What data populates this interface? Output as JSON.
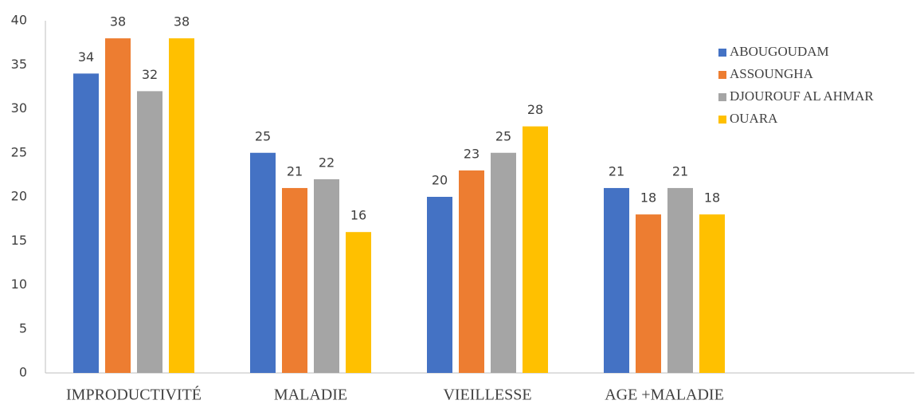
{
  "chart_data": {
    "type": "bar",
    "categories": [
      "IMPRODUCTIVITÉ",
      "MALADIE",
      "VIEILLESSE",
      "AGE +MALADIE"
    ],
    "series": [
      {
        "name": "ABOUGOUDAM",
        "color": "#4472c4",
        "values": [
          34,
          25,
          20,
          21
        ]
      },
      {
        "name": "ASSOUNGHA",
        "color": "#ed7d31",
        "values": [
          38,
          21,
          23,
          18
        ]
      },
      {
        "name": "DJOUROUF AL AHMAR",
        "color": "#a5a5a5",
        "values": [
          32,
          22,
          25,
          21
        ]
      },
      {
        "name": "OUARA",
        "color": "#ffc000",
        "values": [
          38,
          16,
          28,
          18
        ]
      }
    ],
    "ylim": [
      0,
      40
    ],
    "yticks": [
      0,
      5,
      10,
      15,
      20,
      25,
      30,
      35,
      40
    ],
    "grid": false,
    "legend": "upper right"
  }
}
